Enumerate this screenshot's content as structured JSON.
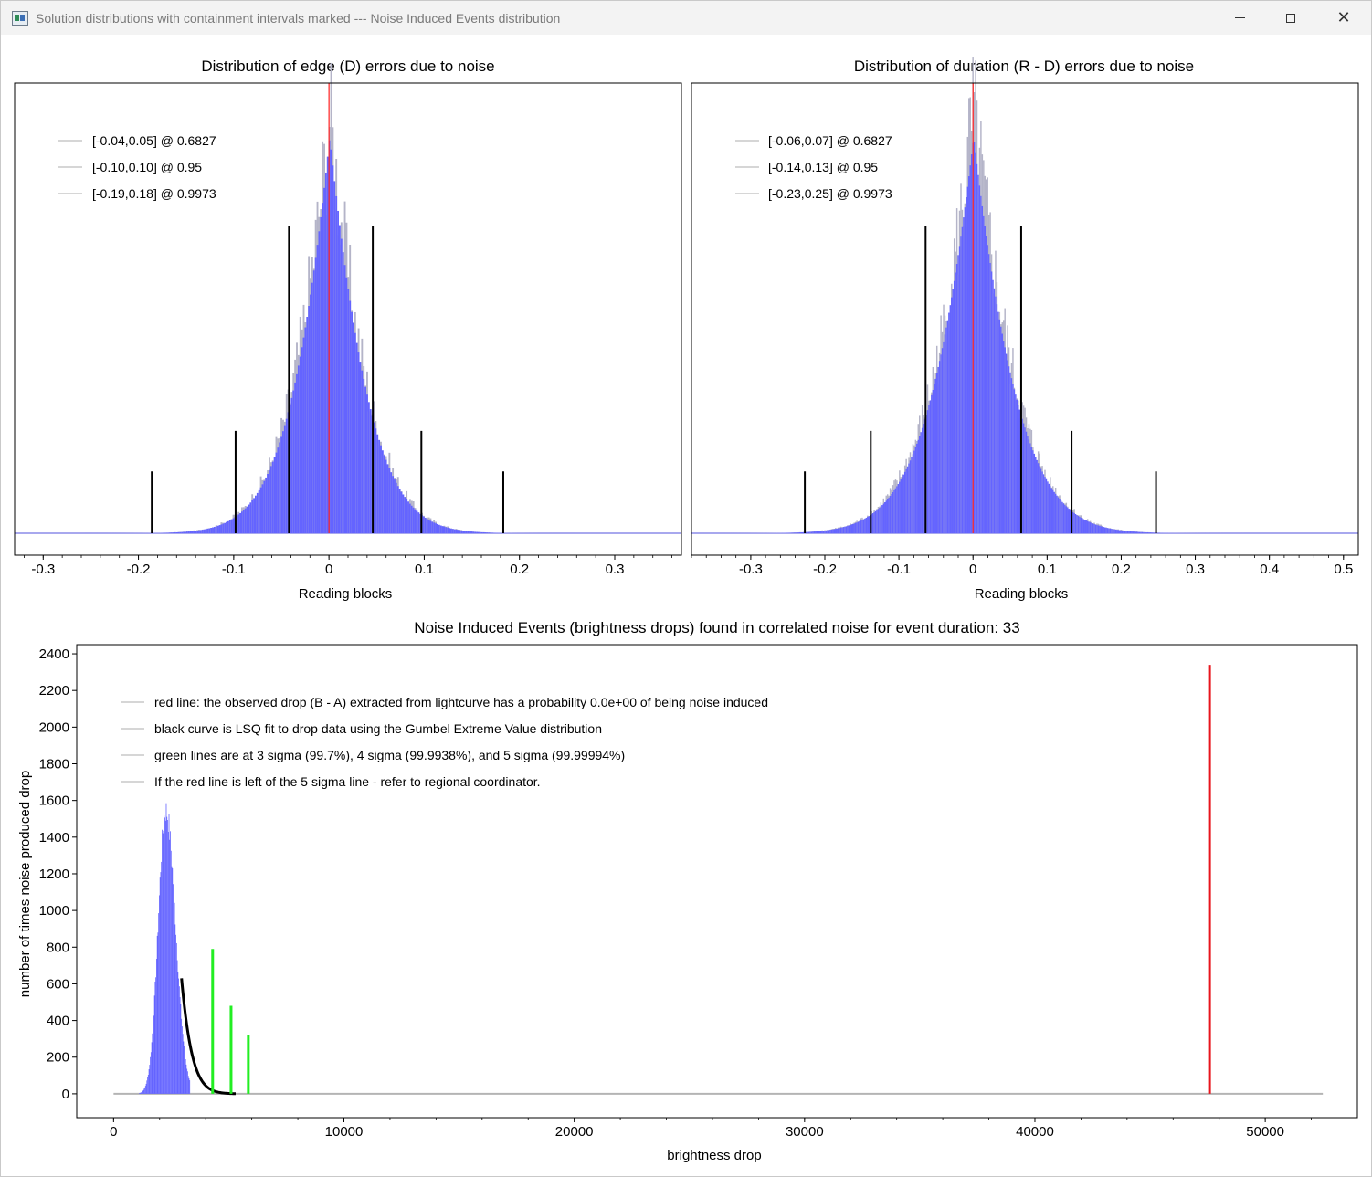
{
  "window": {
    "title": "Solution distributions with containment intervals marked --- Noise Induced Events distribution"
  },
  "chart_data": [
    {
      "type": "bar",
      "title": "Distribution of edge (D) errors due to noise",
      "xlabel": "Reading blocks",
      "ylabel": "",
      "xlim": [
        -0.33,
        0.37
      ],
      "xticks": [
        "-0.3",
        "-0.2",
        "-0.1",
        "0",
        "0.1",
        "0.2",
        "0.3"
      ],
      "legend_placement": "top-left",
      "legend": [
        "[-0.04,0.05] @ 0.6827",
        "[-0.10,0.10] @ 0.95",
        "[-0.19,0.18] @ 0.9973"
      ],
      "histogram": {
        "center": 0.0,
        "sigma": 0.045,
        "peak": 1.0,
        "xmin": -0.31,
        "xmax": 0.34
      },
      "observed_line_x": 0.0,
      "intervals": [
        {
          "low": -0.042,
          "high": 0.046,
          "level": 0.6827,
          "height": 0.72
        },
        {
          "low": -0.098,
          "high": 0.097,
          "level": 0.95,
          "height": 0.24
        },
        {
          "low": -0.186,
          "high": 0.183,
          "level": 0.9973,
          "height": 0.145
        }
      ]
    },
    {
      "type": "bar",
      "title": "Distribution of duration (R - D) errors due to noise",
      "xlabel": "Reading blocks",
      "ylabel": "",
      "xlim": [
        -0.38,
        0.52
      ],
      "xticks": [
        "-0.3",
        "-0.2",
        "-0.1",
        "0",
        "0.1",
        "0.2",
        "0.3",
        "0.4",
        "0.5"
      ],
      "legend_placement": "top-left",
      "legend": [
        "[-0.06,0.07] @ 0.6827",
        "[-0.14,0.13] @ 0.95",
        "[-0.23,0.25] @ 0.9973"
      ],
      "histogram": {
        "center": 0.0,
        "sigma": 0.065,
        "peak": 1.0,
        "xmin": -0.37,
        "xmax": 0.5
      },
      "observed_line_x": 0.0,
      "intervals": [
        {
          "low": -0.064,
          "high": 0.065,
          "level": 0.6827,
          "height": 0.72
        },
        {
          "low": -0.138,
          "high": 0.133,
          "level": 0.95,
          "height": 0.24
        },
        {
          "low": -0.227,
          "high": 0.247,
          "level": 0.9973,
          "height": 0.145
        }
      ]
    },
    {
      "type": "bar",
      "title": "Noise Induced Events (brightness drops) found in correlated noise for event duration: 33",
      "xlabel": "brightness drop",
      "ylabel": "number of times noise produced drop",
      "xlim": [
        -1600,
        54000
      ],
      "ylim": [
        -130,
        2450
      ],
      "xticks": [
        0,
        10000,
        20000,
        30000,
        40000,
        50000
      ],
      "yticks": [
        0,
        200,
        400,
        600,
        800,
        1000,
        1200,
        1400,
        1600,
        1800,
        2000,
        2200,
        2400
      ],
      "legend_placement": "top-left",
      "legend": [
        "red line: the observed drop (B - A) extracted from lightcurve has a probability 0.0e+00 of being noise induced",
        "black curve is LSQ fit to drop data using the Gumbel Extreme Value distribution",
        "green lines are at 3 sigma (99.7%), 4 sigma (99.9938%), and 5 sigma (99.99994%)",
        "If the red line is left of the 5 sigma line - refer to regional coordinator."
      ],
      "histogram": {
        "peak_x": 2250,
        "peak_count": 1560,
        "start_x": 1100,
        "end_x": 3300
      },
      "baseline": {
        "x_start": 0,
        "x_end": 52500
      },
      "gumbel_fit": {
        "x_start": 2950,
        "x_end": 5300,
        "y_start": 630
      },
      "observed_drop": {
        "x": 47600,
        "height": 2340,
        "color": "#e8141c"
      },
      "sigma_lines": [
        {
          "label": "3 sigma",
          "x": 4300,
          "height": 790
        },
        {
          "label": "4 sigma",
          "x": 5100,
          "height": 480
        },
        {
          "label": "5 sigma",
          "x": 5850,
          "height": 320
        }
      ],
      "colors": {
        "bars": "#6464ff",
        "sigma": "#22ee22",
        "fit": "#000000"
      }
    }
  ]
}
